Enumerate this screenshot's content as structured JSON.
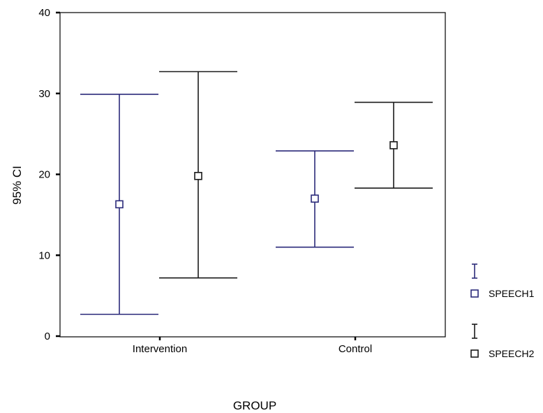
{
  "chart_data": {
    "type": "errorbar",
    "xlabel": "GROUP",
    "ylabel": "95% CI",
    "ylim": [
      0,
      40
    ],
    "yticks": [
      0,
      10,
      20,
      30,
      40
    ],
    "grid": false,
    "legend_position": "right",
    "categories": [
      "Intervention",
      "Control"
    ],
    "series": [
      {
        "name": "SPEECH1",
        "color": "#2b2a7a",
        "marker": "square-open",
        "mean": [
          16.3,
          17.0
        ],
        "lower": [
          2.7,
          11.0
        ],
        "upper": [
          29.9,
          22.9
        ]
      },
      {
        "name": "SPEECH2",
        "color": "#1a1a1a",
        "marker": "square-open",
        "mean": [
          19.8,
          23.6
        ],
        "lower": [
          7.2,
          18.3
        ],
        "upper": [
          32.7,
          28.9
        ]
      }
    ]
  }
}
